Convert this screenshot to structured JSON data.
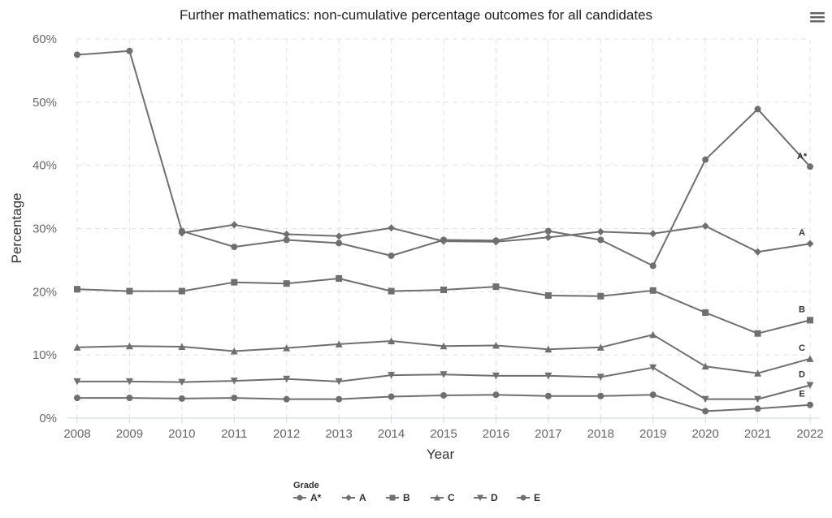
{
  "chart_data": {
    "type": "line",
    "title": "Further mathematics: non-cumulative percentage outcomes for all candidates",
    "xlabel": "Year",
    "ylabel": "Percentage",
    "ylim": [
      0,
      60
    ],
    "y_ticks": [
      "0%",
      "10%",
      "20%",
      "30%",
      "40%",
      "50%",
      "60%"
    ],
    "y_tick_values": [
      0,
      10,
      20,
      30,
      40,
      50,
      60
    ],
    "x": [
      "2008",
      "2009",
      "2010",
      "2011",
      "2012",
      "2013",
      "2014",
      "2015",
      "2016",
      "2017",
      "2018",
      "2019",
      "2020",
      "2021",
      "2022"
    ],
    "grid": true,
    "legend_title": "Grade",
    "legend_position": "bottom",
    "line_color": "#6f6f6f",
    "series": [
      {
        "name": "A*",
        "end_label": "A*",
        "marker": "circle",
        "values": [
          57.5,
          58.1,
          29.6,
          27.1,
          28.2,
          27.7,
          25.7,
          28.2,
          28.1,
          29.6,
          28.2,
          24.1,
          40.9,
          48.9,
          39.8
        ]
      },
      {
        "name": "A",
        "end_label": "A",
        "marker": "diamond",
        "values": [
          null,
          null,
          29.3,
          30.6,
          29.1,
          28.8,
          30.1,
          28.0,
          27.9,
          28.6,
          29.5,
          29.2,
          30.4,
          26.3,
          27.6
        ]
      },
      {
        "name": "B",
        "end_label": "B",
        "marker": "square",
        "values": [
          20.4,
          20.1,
          20.1,
          21.5,
          21.3,
          22.1,
          20.1,
          20.3,
          20.8,
          19.4,
          19.3,
          20.2,
          16.7,
          13.4,
          15.5
        ]
      },
      {
        "name": "C",
        "end_label": "C",
        "marker": "triangle-up",
        "values": [
          11.2,
          11.4,
          11.3,
          10.6,
          11.1,
          11.7,
          12.2,
          11.4,
          11.5,
          10.9,
          11.2,
          13.2,
          8.2,
          7.1,
          9.4
        ]
      },
      {
        "name": "D",
        "end_label": "D",
        "marker": "triangle-down",
        "values": [
          5.8,
          5.8,
          5.7,
          5.9,
          6.2,
          5.8,
          6.8,
          6.9,
          6.7,
          6.7,
          6.5,
          8.0,
          3.0,
          3.0,
          5.2
        ]
      },
      {
        "name": "E",
        "end_label": "E",
        "marker": "circle",
        "values": [
          3.2,
          3.2,
          3.1,
          3.2,
          3.0,
          3.0,
          3.4,
          3.6,
          3.7,
          3.5,
          3.5,
          3.7,
          1.1,
          1.5,
          2.1
        ]
      }
    ]
  },
  "menu": {
    "icon": "hamburger-menu-icon"
  }
}
